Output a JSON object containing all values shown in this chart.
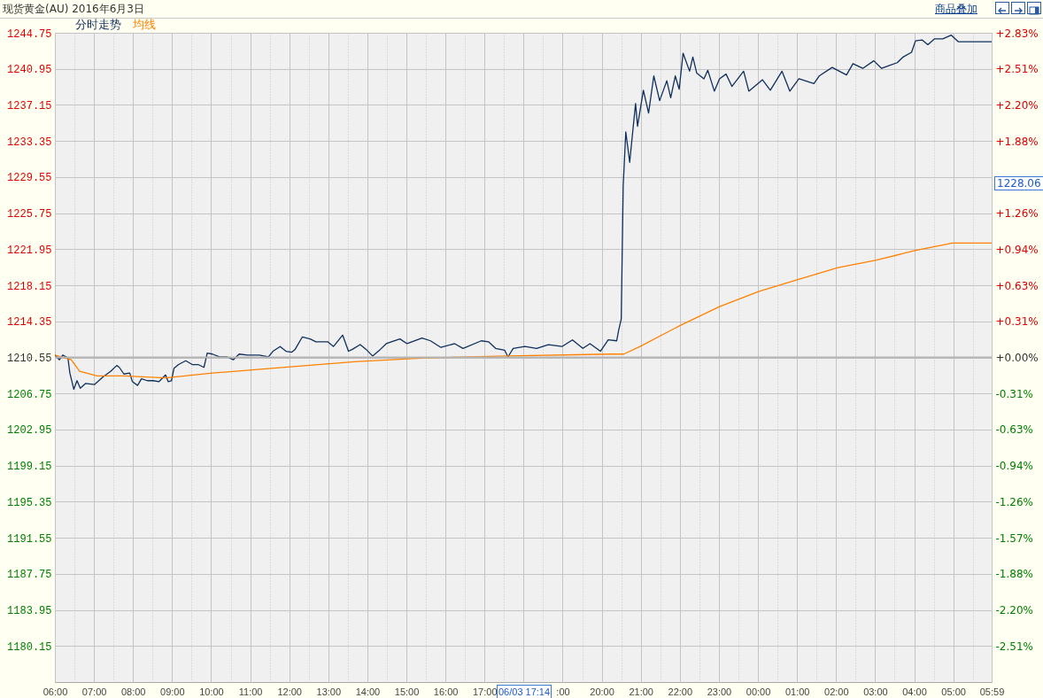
{
  "chart_data": {
    "type": "line",
    "title": "现货黄金(AU) 2016年6月3日",
    "legend": "top left",
    "grid": true,
    "xlim": [
      "2016-06-03T06:00",
      "2016-06-04T05:59"
    ],
    "xticks": [
      {
        "value": "2016-06-03T06:00",
        "label": "06:00"
      },
      {
        "value": "2016-06-03T07:00",
        "label": "07:00"
      },
      {
        "value": "2016-06-03T08:00",
        "label": "08:00"
      },
      {
        "value": "2016-06-03T09:00",
        "label": "09:00"
      },
      {
        "value": "2016-06-03T10:00",
        "label": "10:00"
      },
      {
        "value": "2016-06-03T11:00",
        "label": "11:00"
      },
      {
        "value": "2016-06-03T12:00",
        "label": "12:00"
      },
      {
        "value": "2016-06-03T13:00",
        "label": "13:00"
      },
      {
        "value": "2016-06-03T14:00",
        "label": "14:00"
      },
      {
        "value": "2016-06-03T15:00",
        "label": "15:00"
      },
      {
        "value": "2016-06-03T16:00",
        "label": "16:00"
      },
      {
        "value": "2016-06-03T17:00",
        "label": "17:00"
      },
      {
        "value": "2016-06-03T18:00",
        "label": null
      },
      {
        "value": "2016-06-03T19:00",
        "label": ":00"
      },
      {
        "value": "2016-06-03T20:00",
        "label": "20:00"
      },
      {
        "value": "2016-06-03T21:00",
        "label": "21:00"
      },
      {
        "value": "2016-06-03T22:00",
        "label": "22:00"
      },
      {
        "value": "2016-06-03T23:00",
        "label": "23:00"
      },
      {
        "value": "2016-06-04T00:00",
        "label": "00:00"
      },
      {
        "value": "2016-06-04T01:00",
        "label": "01:00"
      },
      {
        "value": "2016-06-04T02:00",
        "label": "02:00"
      },
      {
        "value": "2016-06-04T03:00",
        "label": "03:00"
      },
      {
        "value": "2016-06-04T04:00",
        "label": "04:00"
      },
      {
        "value": "2016-06-04T05:00",
        "label": "05:00"
      },
      {
        "value": "2016-06-04T05:59",
        "label": "05:59"
      },
      {
        "value": "2016-06-03T06:30",
        "label": null
      },
      {
        "value": "2016-06-03T07:30",
        "label": null
      },
      {
        "value": "2016-06-03T08:30",
        "label": null
      },
      {
        "value": "2016-06-03T09:30",
        "label": null
      },
      {
        "value": "2016-06-03T10:30",
        "label": null
      },
      {
        "value": "2016-06-03T11:30",
        "label": null
      },
      {
        "value": "2016-06-03T12:30",
        "label": null
      },
      {
        "value": "2016-06-03T13:30",
        "label": null
      },
      {
        "value": "2016-06-03T14:30",
        "label": null
      },
      {
        "value": "2016-06-03T15:30",
        "label": null
      },
      {
        "value": "2016-06-03T16:30",
        "label": null
      },
      {
        "value": "2016-06-03T17:30",
        "label": null
      },
      {
        "value": "2016-06-03T18:30",
        "label": null
      },
      {
        "value": "2016-06-03T19:30",
        "label": null
      },
      {
        "value": "2016-06-03T20:30",
        "label": null
      },
      {
        "value": "2016-06-03T21:30",
        "label": null
      },
      {
        "value": "2016-06-03T22:30",
        "label": null
      },
      {
        "value": "2016-06-03T23:30",
        "label": null
      },
      {
        "value": "2016-06-04T00:30",
        "label": null
      },
      {
        "value": "2016-06-04T01:30",
        "label": null
      },
      {
        "value": "2016-06-04T02:30",
        "label": null
      },
      {
        "value": "2016-06-04T03:30",
        "label": null
      },
      {
        "value": "2016-06-04T04:30",
        "label": null
      },
      {
        "value": "2016-06-04T05:30",
        "label": null
      }
    ],
    "ylim": [
      1176.35,
      1244.75
    ],
    "yticks": [
      1180.15,
      1183.95,
      1187.75,
      1191.55,
      1195.35,
      1199.15,
      1202.95,
      1206.75,
      1210.55,
      1214.35,
      1218.15,
      1221.95,
      1225.75,
      1229.55,
      1233.35,
      1237.15,
      1240.95,
      1244.75
    ],
    "y2lim": [
      -2.825,
      2.825
    ],
    "y2ticks": [
      {
        "value": 2.825,
        "label": "+2.83%"
      },
      {
        "value": 2.511,
        "label": "+2.51%"
      },
      {
        "value": 2.197,
        "label": "+2.20%"
      },
      {
        "value": 1.883,
        "label": "+1.88%"
      },
      {
        "value": 1.57,
        "label": null
      },
      {
        "value": 1.256,
        "label": "+1.26%"
      },
      {
        "value": 0.942,
        "label": "+0.94%"
      },
      {
        "value": 0.628,
        "label": "+0.63%"
      },
      {
        "value": 0.314,
        "label": "+0.31%"
      },
      {
        "value": 0,
        "label": "+0.00%"
      },
      {
        "value": -0.314,
        "label": "-0.31%"
      },
      {
        "value": -0.628,
        "label": "-0.63%"
      },
      {
        "value": -0.942,
        "label": "-0.94%"
      },
      {
        "value": -1.256,
        "label": "-1.26%"
      },
      {
        "value": -1.57,
        "label": "-1.57%"
      },
      {
        "value": -1.883,
        "label": "-1.88%"
      },
      {
        "value": -2.197,
        "label": "-2.20%"
      },
      {
        "value": -2.511,
        "label": "-2.51%"
      }
    ],
    "ref_lines": [
      {
        "axis": "y2",
        "value": 0,
        "color": "#b4b4b4"
      }
    ],
    "annotations": [
      "商品叠加",
      "1228.06",
      "06/03 17:14"
    ],
    "series": [
      {
        "name": "分时走势",
        "color": "#0f2f5c",
        "x": [
          "2016-06-03T06:00",
          "2016-06-03T06:07",
          "2016-06-03T06:12",
          "2016-06-03T06:20",
          "2016-06-03T06:23",
          "2016-06-03T06:29",
          "2016-06-03T06:34",
          "2016-06-03T06:39",
          "2016-06-03T06:47",
          "2016-06-03T07:01",
          "2016-06-03T07:14",
          "2016-06-03T07:26",
          "2016-06-03T07:35",
          "2016-06-03T07:39",
          "2016-06-03T07:46",
          "2016-06-03T07:55",
          "2016-06-03T07:59",
          "2016-06-03T08:07",
          "2016-06-03T08:13",
          "2016-06-03T08:22",
          "2016-06-03T08:31",
          "2016-06-03T08:40",
          "2016-06-03T08:50",
          "2016-06-03T08:54",
          "2016-06-03T08:59",
          "2016-06-03T09:03",
          "2016-06-03T09:10",
          "2016-06-03T09:21",
          "2016-06-03T09:31",
          "2016-06-03T09:40",
          "2016-06-03T09:49",
          "2016-06-03T09:54",
          "2016-06-03T10:02",
          "2016-06-03T10:13",
          "2016-06-03T10:25",
          "2016-06-03T10:34",
          "2016-06-03T10:43",
          "2016-06-03T10:56",
          "2016-06-03T11:14",
          "2016-06-03T11:28",
          "2016-06-03T11:35",
          "2016-06-03T11:46",
          "2016-06-03T11:55",
          "2016-06-03T12:04",
          "2016-06-03T12:09",
          "2016-06-03T12:20",
          "2016-06-03T12:32",
          "2016-06-03T12:41",
          "2016-06-03T12:59",
          "2016-06-03T13:08",
          "2016-06-03T13:22",
          "2016-06-03T13:31",
          "2016-06-03T13:37",
          "2016-06-03T13:49",
          "2016-06-03T13:58",
          "2016-06-03T14:08",
          "2016-06-03T14:20",
          "2016-06-03T14:29",
          "2016-06-03T14:50",
          "2016-06-03T15:01",
          "2016-06-03T15:24",
          "2016-06-03T15:37",
          "2016-06-03T15:53",
          "2016-06-03T16:14",
          "2016-06-03T16:27",
          "2016-06-03T16:55",
          "2016-06-03T17:06",
          "2016-06-03T17:17",
          "2016-06-03T17:31",
          "2016-06-03T17:36",
          "2016-06-03T17:44",
          "2016-06-03T18:02",
          "2016-06-03T18:20",
          "2016-06-03T18:38",
          "2016-06-03T18:59",
          "2016-06-03T19:15",
          "2016-06-03T19:31",
          "2016-06-03T19:42",
          "2016-06-03T19:58",
          "2016-06-03T20:10",
          "2016-06-03T20:23",
          "2016-06-03T20:26",
          "2016-06-03T20:30",
          "2016-06-03T20:33",
          "2016-06-03T20:37",
          "2016-06-03T20:43",
          "2016-06-03T20:46",
          "2016-06-03T20:52",
          "2016-06-03T20:55",
          "2016-06-03T21:04",
          "2016-06-03T21:12",
          "2016-06-03T21:20",
          "2016-06-03T21:29",
          "2016-06-03T21:40",
          "2016-06-03T21:46",
          "2016-06-03T21:53",
          "2016-06-03T21:59",
          "2016-06-03T22:05",
          "2016-06-03T22:15",
          "2016-06-03T22:20",
          "2016-06-03T22:26",
          "2016-06-03T22:37",
          "2016-06-03T22:43",
          "2016-06-03T22:53",
          "2016-06-03T23:01",
          "2016-06-03T23:11",
          "2016-06-03T23:20",
          "2016-06-03T23:38",
          "2016-06-03T23:46",
          "2016-06-04T00:07",
          "2016-06-04T00:19",
          "2016-06-04T00:37",
          "2016-06-04T00:49",
          "2016-06-04T01:03",
          "2016-06-04T01:26",
          "2016-06-04T01:34",
          "2016-06-04T01:54",
          "2016-06-04T02:16",
          "2016-06-04T02:26",
          "2016-06-04T02:41",
          "2016-06-04T02:58",
          "2016-06-04T03:10",
          "2016-06-04T03:22",
          "2016-06-04T03:34",
          "2016-06-04T03:43",
          "2016-06-04T03:56",
          "2016-06-04T04:02",
          "2016-06-04T04:12",
          "2016-06-04T04:21",
          "2016-06-04T04:31",
          "2016-06-04T04:44",
          "2016-06-04T04:57",
          "2016-06-04T05:08",
          "2016-06-04T05:59"
        ],
        "values": [
          1210.8,
          1210.3,
          1210.8,
          1210.5,
          1208.9,
          1207.2,
          1208.1,
          1207.3,
          1207.8,
          1207.7,
          1208.5,
          1209.1,
          1209.7,
          1209.5,
          1208.8,
          1208.9,
          1208.0,
          1207.6,
          1208.3,
          1208.1,
          1208.1,
          1208.0,
          1208.7,
          1208.0,
          1208.1,
          1209.4,
          1209.8,
          1210.2,
          1209.8,
          1209.8,
          1209.5,
          1211.0,
          1210.9,
          1210.6,
          1210.6,
          1210.3,
          1210.9,
          1210.8,
          1210.8,
          1210.6,
          1211.2,
          1211.7,
          1211.2,
          1211.1,
          1211.4,
          1212.7,
          1212.5,
          1212.2,
          1212.2,
          1211.7,
          1212.9,
          1211.2,
          1211.4,
          1211.9,
          1211.4,
          1210.7,
          1211.4,
          1212.0,
          1212.5,
          1212.0,
          1212.6,
          1212.3,
          1211.6,
          1212.0,
          1211.5,
          1212.3,
          1212.2,
          1211.5,
          1211.3,
          1210.6,
          1211.5,
          1211.7,
          1211.5,
          1211.9,
          1211.7,
          1212.4,
          1211.5,
          1212.0,
          1211.2,
          1212.4,
          1212.3,
          1213.4,
          1214.6,
          1228.6,
          1234.3,
          1231.1,
          1233.2,
          1237.3,
          1234.9,
          1238.7,
          1236.3,
          1240.2,
          1237.6,
          1239.7,
          1237.9,
          1240.2,
          1238.8,
          1242.6,
          1240.7,
          1242.2,
          1240.5,
          1239.9,
          1240.8,
          1238.6,
          1239.9,
          1240.4,
          1239.1,
          1240.7,
          1238.6,
          1239.8,
          1238.7,
          1240.7,
          1238.6,
          1239.9,
          1239.4,
          1240.2,
          1241.1,
          1240.3,
          1241.5,
          1241.0,
          1241.8,
          1241.0,
          1241.3,
          1241.6,
          1242.2,
          1242.7,
          1243.9,
          1244.0,
          1243.5,
          1244.1,
          1244.1,
          1244.5,
          1243.8,
          1243.8
        ]
      },
      {
        "name": "均线",
        "color": "#ff8000",
        "x": [
          "2016-06-03T06:00",
          "2016-06-03T06:25",
          "2016-06-03T06:38",
          "2016-06-03T07:05",
          "2016-06-03T07:46",
          "2016-06-03T08:50",
          "2016-06-03T10:02",
          "2016-06-03T11:32",
          "2016-06-03T13:40",
          "2016-06-03T15:28",
          "2016-06-03T17:35",
          "2016-06-03T20:14",
          "2016-06-03T20:34",
          "2016-06-03T20:59",
          "2016-06-03T22:00",
          "2016-06-03T23:01",
          "2016-06-04T00:01",
          "2016-06-04T00:59",
          "2016-06-04T02:03",
          "2016-06-04T03:02",
          "2016-06-04T04:01",
          "2016-06-04T04:59",
          "2016-06-04T05:59"
        ],
        "values": [
          1210.8,
          1210.3,
          1209.1,
          1208.6,
          1208.6,
          1208.4,
          1208.9,
          1209.4,
          1210.1,
          1210.5,
          1210.7,
          1210.9,
          1210.9,
          1211.7,
          1213.9,
          1215.9,
          1217.5,
          1218.7,
          1220.0,
          1220.8,
          1221.8,
          1222.6,
          1222.6
        ]
      }
    ]
  }
}
